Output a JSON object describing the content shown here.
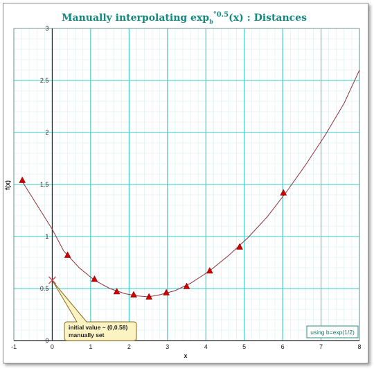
{
  "chart_data": {
    "type": "line",
    "title_main": "Manually interpolating exp",
    "title_sub": "b",
    "title_sup": "°0.5",
    "title_tail": "(x) : Distances",
    "xlabel": "x",
    "ylabel": "f(x)",
    "xlim": [
      -1,
      8
    ],
    "ylim": [
      0,
      3
    ],
    "x_ticks": [
      -1,
      0,
      1,
      2,
      3,
      4,
      5,
      6,
      7,
      8
    ],
    "y_ticks": [
      0,
      0.5,
      1,
      1.5,
      2,
      2.5,
      3
    ],
    "y_tick_labels": [
      "0",
      "0.5",
      "1",
      "1.5",
      "2",
      "2.5",
      "3"
    ],
    "grid": true,
    "grid_color": "#36c8c8",
    "minor_grid_color": "#d6eeee",
    "line_color": "#8e2f3a",
    "marker_color": "#cc0000",
    "curve": {
      "x": [
        -0.8,
        0,
        0.3,
        0.7,
        1.1,
        1.5,
        1.9,
        2.2,
        2.5,
        2.8,
        3.2,
        3.6,
        4.1,
        4.6,
        5.1,
        5.6,
        6.1,
        6.6,
        7.1,
        7.6,
        8.0
      ],
      "y": [
        1.54,
        1.07,
        0.86,
        0.7,
        0.58,
        0.5,
        0.45,
        0.43,
        0.42,
        0.44,
        0.48,
        0.55,
        0.67,
        0.82,
        0.99,
        1.19,
        1.43,
        1.69,
        1.97,
        2.28,
        2.6
      ]
    },
    "markers": {
      "x": [
        -0.78,
        0.4,
        1.1,
        1.68,
        2.12,
        2.52,
        2.97,
        3.5,
        4.1,
        4.88,
        6.02
      ],
      "y": [
        1.54,
        0.82,
        0.59,
        0.47,
        0.44,
        0.42,
        0.46,
        0.52,
        0.67,
        0.9,
        1.42
      ]
    },
    "initial_point": {
      "x": 0,
      "y": 0.58
    },
    "annotation": {
      "line1": "initial value ~ (0,0.58)",
      "line2": "manually set"
    },
    "legend_note": "using b=exp(1/2)"
  }
}
